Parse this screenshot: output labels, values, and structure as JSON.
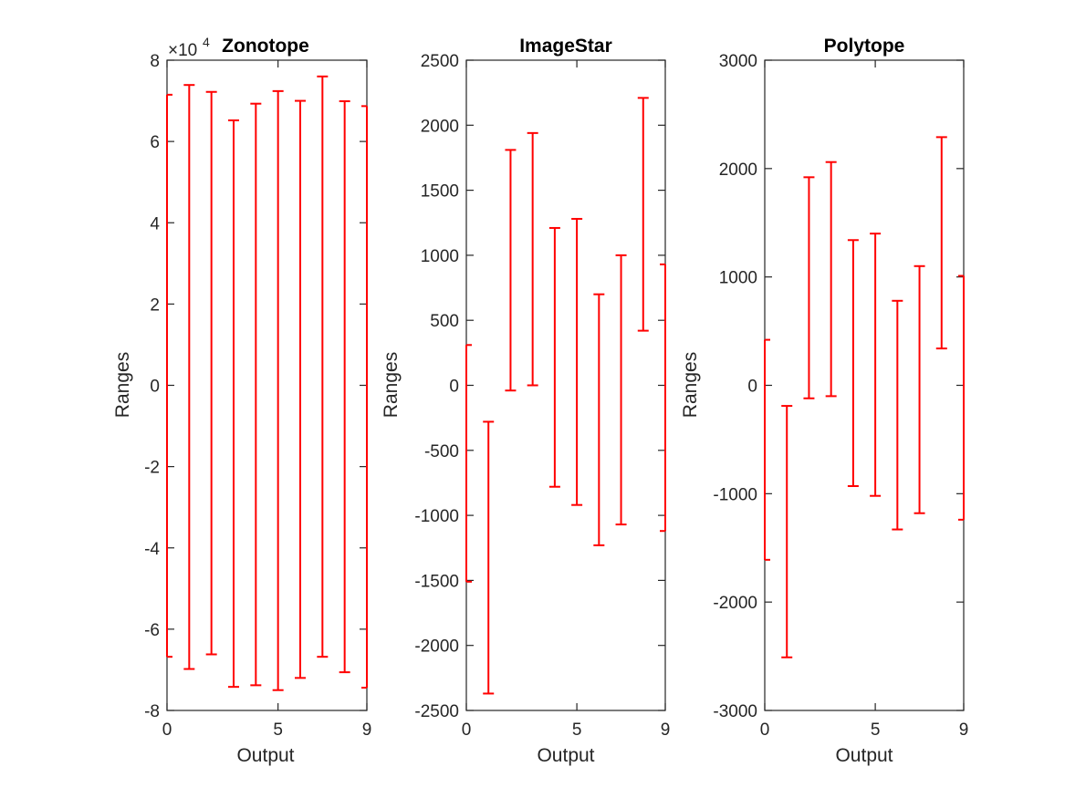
{
  "chart_data": [
    {
      "type": "errorbar",
      "title": "Zonotope",
      "xlabel": "Output",
      "ylabel": "Ranges",
      "y_exponent": "4",
      "x": [
        0,
        1,
        2,
        3,
        4,
        5,
        6,
        7,
        8,
        9
      ],
      "lower": [
        -66800,
        -69800,
        -66200,
        -74200,
        -73800,
        -75000,
        -72000,
        -66800,
        -70600,
        -74400
      ],
      "upper": [
        71500,
        73900,
        72200,
        65200,
        69300,
        72400,
        70000,
        76000,
        69900,
        68700
      ],
      "xlim": [
        0,
        9
      ],
      "ylim": [
        -80000,
        80000
      ],
      "xticks": [
        "0",
        "5",
        "9"
      ],
      "xtick_values": [
        0,
        5,
        9
      ],
      "yticks": [
        "-8",
        "-6",
        "-4",
        "-2",
        "0",
        "2",
        "4",
        "6",
        "8"
      ],
      "ytick_values": [
        -80000,
        -60000,
        -40000,
        -20000,
        0,
        20000,
        40000,
        60000,
        80000
      ],
      "color": "#ff0000"
    },
    {
      "type": "errorbar",
      "title": "ImageStar",
      "xlabel": "Output",
      "ylabel": "Ranges",
      "x": [
        0,
        1,
        2,
        3,
        4,
        5,
        6,
        7,
        8,
        9
      ],
      "lower": [
        -1510,
        -2370,
        -40,
        0,
        -780,
        -920,
        -1230,
        -1070,
        420,
        -1120
      ],
      "upper": [
        310,
        -280,
        1810,
        1940,
        1210,
        1280,
        700,
        1000,
        2210,
        930
      ],
      "xlim": [
        0,
        9
      ],
      "ylim": [
        -2500,
        2500
      ],
      "xticks": [
        "0",
        "5",
        "9"
      ],
      "xtick_values": [
        0,
        5,
        9
      ],
      "yticks": [
        "-2500",
        "-2000",
        "-1500",
        "-1000",
        "-500",
        "0",
        "500",
        "1000",
        "1500",
        "2000",
        "2500"
      ],
      "ytick_values": [
        -2500,
        -2000,
        -1500,
        -1000,
        -500,
        0,
        500,
        1000,
        1500,
        2000,
        2500
      ],
      "color": "#ff0000"
    },
    {
      "type": "errorbar",
      "title": "Polytope",
      "xlabel": "Output",
      "ylabel": "Ranges",
      "x": [
        0,
        1,
        2,
        3,
        4,
        5,
        6,
        7,
        8,
        9
      ],
      "lower": [
        -1610,
        -2510,
        -120,
        -100,
        -930,
        -1020,
        -1330,
        -1180,
        340,
        -1240
      ],
      "upper": [
        420,
        -190,
        1920,
        2060,
        1340,
        1400,
        780,
        1100,
        2290,
        1010
      ],
      "xlim": [
        0,
        9
      ],
      "ylim": [
        -3000,
        3000
      ],
      "xticks": [
        "0",
        "5",
        "9"
      ],
      "xtick_values": [
        0,
        5,
        9
      ],
      "yticks": [
        "-3000",
        "-2000",
        "-1000",
        "0",
        "1000",
        "2000",
        "3000"
      ],
      "ytick_values": [
        -3000,
        -2000,
        -1000,
        0,
        1000,
        2000,
        3000
      ],
      "color": "#ff0000"
    }
  ]
}
